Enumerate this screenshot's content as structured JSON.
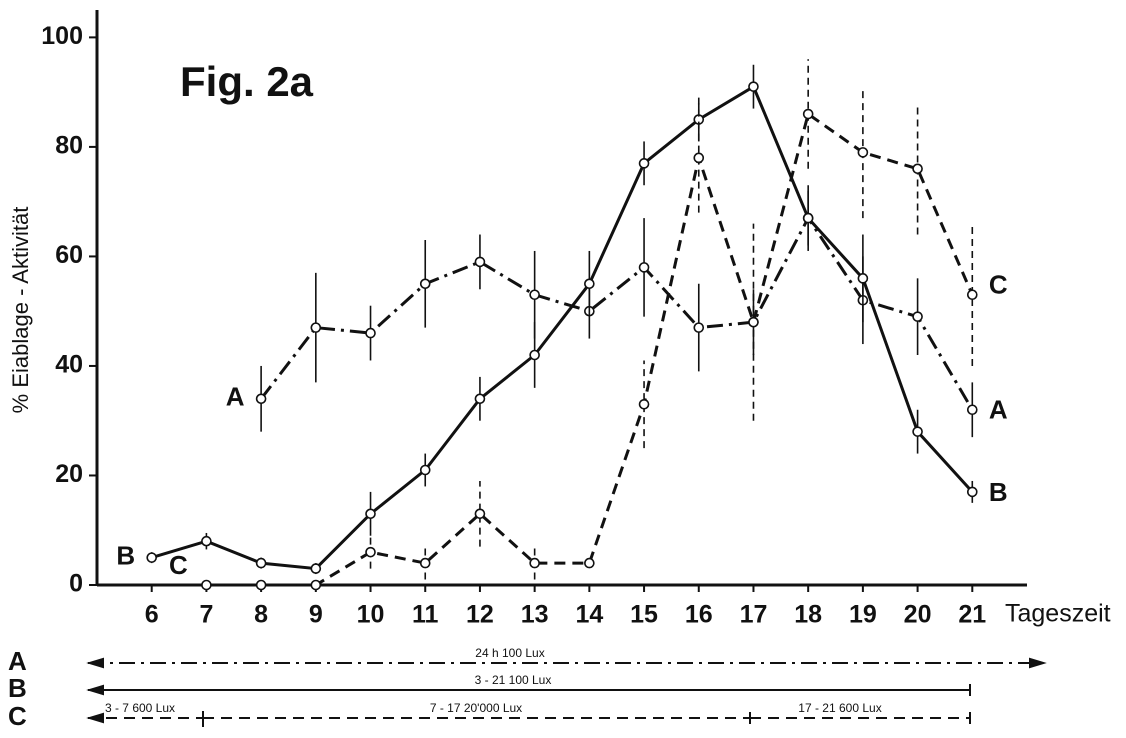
{
  "chart_data": {
    "type": "line",
    "title": "Fig. 2a",
    "y_label": "% Eiablage - Aktivität",
    "x_label": "Tageszeit",
    "x": [
      6,
      7,
      8,
      9,
      10,
      11,
      12,
      13,
      14,
      15,
      16,
      17,
      18,
      19,
      20,
      21
    ],
    "xlim": [
      5,
      22
    ],
    "xticks": [
      6,
      7,
      8,
      9,
      10,
      11,
      12,
      13,
      14,
      15,
      16,
      17,
      18,
      19,
      20,
      21
    ],
    "ylim": [
      0,
      105
    ],
    "yticks": [
      0,
      20,
      40,
      60,
      80,
      100
    ],
    "series": [
      {
        "name": "A",
        "color": "#111111",
        "line_style": "dashdot",
        "values": [
          null,
          null,
          34,
          47,
          46,
          55,
          59,
          53,
          50,
          58,
          47,
          48,
          67,
          52,
          49,
          32
        ],
        "errors": [
          null,
          null,
          6,
          10,
          5,
          8,
          5,
          8,
          5,
          9,
          8,
          6,
          5,
          8,
          7,
          5
        ]
      },
      {
        "name": "B",
        "color": "#111111",
        "line_style": "solid",
        "values": [
          5,
          8,
          4,
          3,
          13,
          21,
          34,
          42,
          55,
          77,
          85,
          91,
          67,
          56,
          28,
          17
        ],
        "errors": [
          1,
          1.5,
          1,
          1,
          4,
          3,
          4,
          6,
          6,
          4,
          4,
          4,
          6,
          8,
          4,
          2
        ]
      },
      {
        "name": "C",
        "color": "#111111",
        "line_style": "dashed",
        "values": [
          null,
          0,
          0,
          0,
          6,
          4,
          13,
          4,
          4,
          33,
          78,
          48,
          86,
          79,
          76,
          53
        ],
        "errors": [
          null,
          null,
          null,
          null,
          3,
          3,
          6,
          3,
          0,
          8,
          10,
          18,
          10,
          12,
          12,
          13
        ]
      }
    ],
    "schedule": [
      {
        "segments": [
          "24 h   100 Lux"
        ]
      },
      {
        "segments": [
          "3 - 21   100 Lux"
        ]
      },
      {
        "segments": [
          "3 - 7  600 Lux",
          "7 - 17   20'000 Lux",
          "17 - 21   600 Lux"
        ]
      }
    ]
  }
}
